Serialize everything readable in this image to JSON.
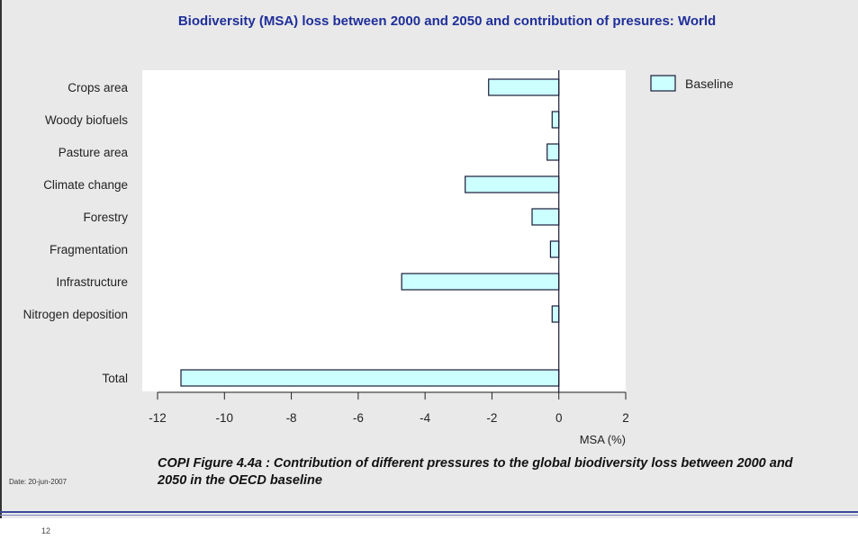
{
  "slide": {
    "caption": "COPI Figure 4.4a : Contribution of different pressures to the global biodiversity loss between 2000 and 2050 in the OECD baseline",
    "date": "Date: 20-jun-2007",
    "page_number": "12"
  },
  "chart_data": {
    "type": "bar",
    "orientation": "horizontal",
    "title": "Biodiversity (MSA) loss between 2000 and 2050 and contribution of presures: World",
    "xlabel": "MSA (%)",
    "ylabel": "",
    "categories": [
      "Crops area",
      "Woody biofuels",
      "Pasture area",
      "Climate change",
      "Forestry",
      "Fragmentation",
      "Infrastructure",
      "Nitrogen deposition",
      "Total"
    ],
    "series": [
      {
        "name": "Baseline",
        "values": [
          -2.1,
          -0.2,
          -0.35,
          -2.8,
          -0.8,
          -0.25,
          -4.7,
          -0.2,
          -11.3
        ]
      }
    ],
    "xlim": [
      -12,
      2
    ],
    "xticks": [
      -12,
      -10,
      -8,
      -6,
      -4,
      -2,
      0,
      2
    ],
    "grid": false,
    "legend": "top-right",
    "colors": {
      "bar_fill": "#ccffff",
      "bar_stroke": "#1a1a3a",
      "title": "#1f2f9a",
      "plot_bg": "#ffffff",
      "panel_bg": "#e9e9e9"
    }
  }
}
